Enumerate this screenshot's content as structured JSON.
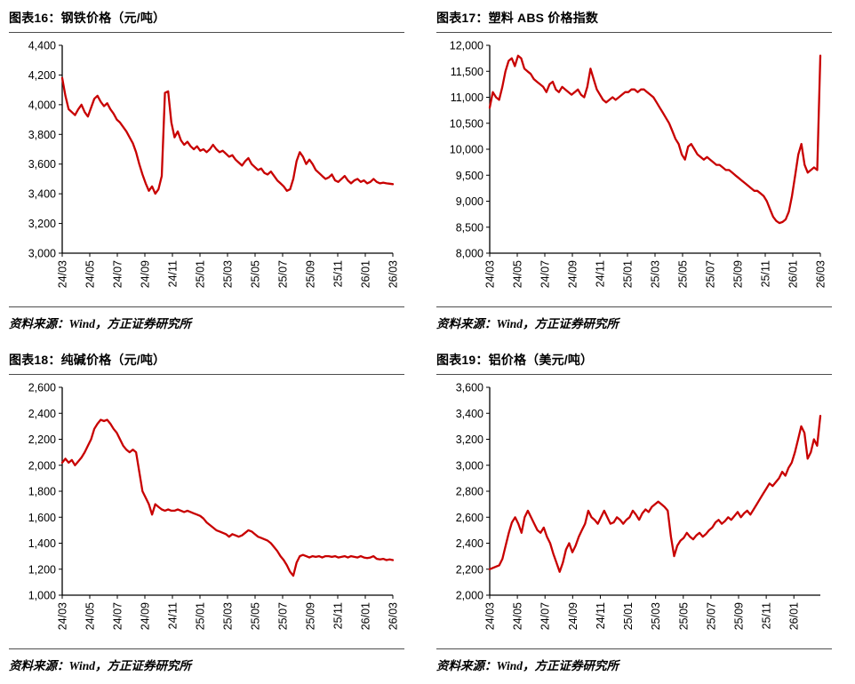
{
  "style": {
    "line_color": "#C80000",
    "axis_color": "#000000",
    "text_color": "#000000"
  },
  "panels": [
    {
      "title": "图表16：钢铁价格（元/吨）",
      "source": "资料来源：Wind，方正证券研究所"
    },
    {
      "title": "图表17：塑料 ABS 价格指数",
      "source": "资料来源：Wind，方正证券研究所"
    },
    {
      "title": "图表18：纯碱价格（元/吨）",
      "source": "资料来源：Wind，方正证券研究所"
    },
    {
      "title": "图表19：铝价格（美元/吨）",
      "source": "资料来源：Wind，方正证券研究所"
    }
  ],
  "chart_data": [
    {
      "type": "line",
      "title": "钢铁价格（元/吨）",
      "legend_position": "none",
      "grid": false,
      "categories": [
        "24/03",
        "24/05",
        "24/07",
        "24/09",
        "24/11",
        "25/01",
        "25/03",
        "25/05",
        "25/07",
        "25/09",
        "25/11",
        "26/01",
        "26/03"
      ],
      "ylim": [
        3000,
        4400
      ],
      "ytick": 200,
      "values": [
        4180,
        4060,
        3970,
        3950,
        3930,
        3970,
        4000,
        3950,
        3920,
        3980,
        4040,
        4060,
        4020,
        3990,
        4010,
        3970,
        3940,
        3900,
        3880,
        3850,
        3820,
        3780,
        3740,
        3680,
        3600,
        3530,
        3470,
        3420,
        3450,
        3400,
        3430,
        3520,
        4080,
        4090,
        3880,
        3780,
        3820,
        3760,
        3730,
        3750,
        3720,
        3700,
        3720,
        3690,
        3700,
        3680,
        3700,
        3730,
        3700,
        3680,
        3690,
        3670,
        3650,
        3660,
        3630,
        3610,
        3590,
        3620,
        3640,
        3600,
        3580,
        3560,
        3570,
        3540,
        3530,
        3550,
        3520,
        3490,
        3470,
        3450,
        3420,
        3430,
        3500,
        3620,
        3680,
        3650,
        3600,
        3630,
        3600,
        3560,
        3540,
        3520,
        3500,
        3510,
        3530,
        3490,
        3480,
        3500,
        3520,
        3490,
        3470,
        3490,
        3500,
        3480,
        3490,
        3470,
        3480,
        3500,
        3480,
        3470,
        3475,
        3470,
        3468,
        3465
      ]
    },
    {
      "type": "line",
      "title": "塑料 ABS 价格指数",
      "legend_position": "none",
      "grid": false,
      "categories": [
        "24/03",
        "24/05",
        "24/07",
        "24/09",
        "24/11",
        "25/01",
        "25/03",
        "25/05",
        "25/07",
        "25/09",
        "25/11",
        "26/01",
        "26/03"
      ],
      "ylim": [
        8000,
        12000
      ],
      "ytick": 500,
      "values": [
        10800,
        11100,
        11000,
        10950,
        11200,
        11500,
        11700,
        11750,
        11600,
        11800,
        11750,
        11550,
        11500,
        11450,
        11350,
        11300,
        11250,
        11200,
        11100,
        11250,
        11300,
        11150,
        11100,
        11200,
        11150,
        11100,
        11050,
        11100,
        11150,
        11050,
        11000,
        11200,
        11550,
        11350,
        11150,
        11050,
        10950,
        10900,
        10950,
        11000,
        10950,
        11000,
        11050,
        11100,
        11100,
        11150,
        11150,
        11100,
        11150,
        11150,
        11100,
        11050,
        11000,
        10900,
        10800,
        10700,
        10600,
        10500,
        10350,
        10200,
        10100,
        9900,
        9800,
        10050,
        10100,
        10000,
        9900,
        9850,
        9800,
        9850,
        9800,
        9750,
        9700,
        9700,
        9650,
        9600,
        9600,
        9550,
        9500,
        9450,
        9400,
        9350,
        9300,
        9250,
        9200,
        9200,
        9150,
        9100,
        9000,
        8850,
        8700,
        8620,
        8580,
        8600,
        8650,
        8800,
        9100,
        9500,
        9900,
        10100,
        9700,
        9550,
        9600,
        9650,
        9600,
        11800
      ]
    },
    {
      "type": "line",
      "title": "纯碱价格（元/吨）",
      "legend_position": "none",
      "grid": false,
      "categories": [
        "24/03",
        "24/05",
        "24/07",
        "24/09",
        "24/11",
        "25/01",
        "25/03",
        "25/05",
        "25/07",
        "25/09",
        "25/11",
        "26/01",
        "26/03"
      ],
      "ylim": [
        1000,
        2600
      ],
      "ytick": 200,
      "values": [
        2020,
        2050,
        2020,
        2040,
        2000,
        2030,
        2060,
        2100,
        2150,
        2200,
        2280,
        2320,
        2350,
        2340,
        2350,
        2320,
        2280,
        2250,
        2200,
        2150,
        2120,
        2100,
        2120,
        2100,
        1950,
        1800,
        1750,
        1700,
        1620,
        1700,
        1680,
        1660,
        1650,
        1660,
        1650,
        1650,
        1660,
        1650,
        1640,
        1650,
        1640,
        1630,
        1620,
        1610,
        1590,
        1560,
        1540,
        1520,
        1500,
        1490,
        1480,
        1470,
        1450,
        1470,
        1460,
        1450,
        1460,
        1480,
        1500,
        1490,
        1470,
        1450,
        1440,
        1430,
        1420,
        1400,
        1370,
        1340,
        1300,
        1270,
        1230,
        1180,
        1150,
        1250,
        1300,
        1310,
        1300,
        1290,
        1300,
        1295,
        1300,
        1290,
        1300,
        1300,
        1295,
        1300,
        1290,
        1295,
        1300,
        1290,
        1300,
        1295,
        1290,
        1300,
        1290,
        1285,
        1290,
        1300,
        1280,
        1275,
        1280,
        1270,
        1275,
        1270
      ]
    },
    {
      "type": "line",
      "title": "铝价格（美元/吨）",
      "legend_position": "none",
      "grid": false,
      "categories": [
        "24/03",
        "24/05",
        "24/07",
        "24/09",
        "24/11",
        "25/01",
        "25/03",
        "25/05",
        "25/07",
        "25/09",
        "25/11",
        "26/01"
      ],
      "label_span": 0.92,
      "ylim": [
        2000,
        3600
      ],
      "ytick": 200,
      "values": [
        2200,
        2210,
        2220,
        2230,
        2280,
        2380,
        2480,
        2560,
        2600,
        2550,
        2480,
        2600,
        2650,
        2600,
        2550,
        2500,
        2480,
        2520,
        2450,
        2400,
        2320,
        2250,
        2180,
        2250,
        2350,
        2400,
        2330,
        2380,
        2450,
        2500,
        2550,
        2650,
        2600,
        2580,
        2550,
        2600,
        2650,
        2600,
        2550,
        2560,
        2600,
        2580,
        2550,
        2580,
        2600,
        2650,
        2620,
        2580,
        2630,
        2660,
        2640,
        2680,
        2700,
        2720,
        2700,
        2680,
        2650,
        2450,
        2300,
        2380,
        2420,
        2440,
        2480,
        2450,
        2430,
        2460,
        2480,
        2450,
        2470,
        2500,
        2520,
        2560,
        2580,
        2550,
        2570,
        2600,
        2580,
        2610,
        2640,
        2600,
        2630,
        2650,
        2620,
        2660,
        2700,
        2740,
        2780,
        2820,
        2860,
        2840,
        2870,
        2900,
        2950,
        2920,
        2980,
        3020,
        3100,
        3200,
        3300,
        3250,
        3050,
        3100,
        3200,
        3150,
        3380
      ]
    }
  ]
}
